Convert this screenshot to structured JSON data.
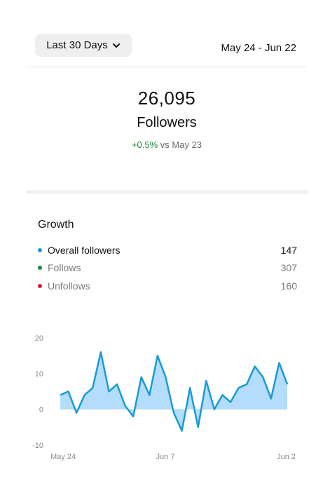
{
  "header": {
    "range_label": "Last 30 Days",
    "date_range": "May 24 - Jun 22"
  },
  "summary": {
    "count": "26,095",
    "label": "Followers",
    "change_pct": "+0.5%",
    "change_suffix": "vs May 23"
  },
  "growth": {
    "title": "Growth",
    "rows": [
      {
        "label": "Overall followers",
        "value": "147",
        "color": "#1a9ad6"
      },
      {
        "label": "Follows",
        "value": "307",
        "color": "#1d8a3e"
      },
      {
        "label": "Unfollows",
        "value": "160",
        "color": "#d81b3c"
      }
    ]
  },
  "chart_data": {
    "type": "area",
    "x_tick_labels": [
      "May 24",
      "Jun 7",
      "Jun 2"
    ],
    "y_ticks": [
      20,
      10,
      0,
      -10
    ],
    "ylim": [
      -10,
      20
    ],
    "series": [
      {
        "values": [
          4,
          5,
          -1,
          4,
          6,
          16,
          5,
          7,
          1,
          -2,
          9,
          4,
          15,
          9,
          -1,
          -6,
          6,
          -5,
          8,
          0,
          4,
          2,
          6,
          7,
          12,
          9,
          3,
          13,
          7
        ],
        "color": "#1a9ad6",
        "fill": "#b3ddfa"
      }
    ]
  }
}
